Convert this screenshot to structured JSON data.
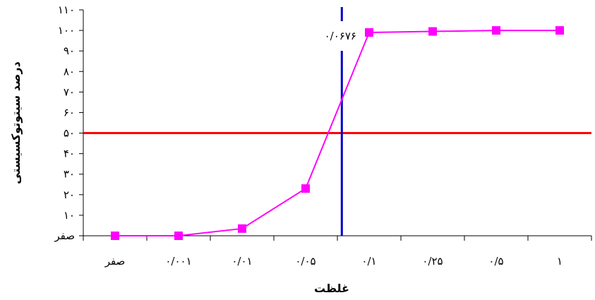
{
  "chart_data": {
    "type": "line",
    "xlabel": "غلظت",
    "ylabel": "درصد سیتوتوکسیستی",
    "categories": [
      "صفر",
      "۰/۰۰۱",
      "۰/۰۱",
      "۰/۰۵",
      "۰/۱",
      "۰/۲۵",
      "۰/۵",
      "۱"
    ],
    "y_ticks": [
      0,
      10,
      20,
      30,
      40,
      50,
      60,
      70,
      80,
      90,
      100,
      110
    ],
    "y_tick_labels": [
      "صفر",
      "۱۰",
      "۲۰",
      "۳۰",
      "۴۰",
      "۵۰",
      "۶۰",
      "۷۰",
      "۸۰",
      "۹۰",
      "۱۰۰",
      "۱۱۰"
    ],
    "ylim": [
      0,
      110
    ],
    "series": [
      {
        "values": [
          0,
          0,
          3.5,
          23,
          99,
          99.5,
          100,
          100
        ],
        "color": "#ff00ff",
        "marker": "square"
      }
    ],
    "reference_lines": {
      "horizontal": {
        "y": 50,
        "color": "#ff0000"
      },
      "vertical": {
        "x_between": [
          "۰/۰۵",
          "۰/۱"
        ],
        "x_fraction": 0.07,
        "color": "#0000cc",
        "label": "۰/۰۶۷۶"
      }
    },
    "grid": false,
    "legend": "none"
  }
}
